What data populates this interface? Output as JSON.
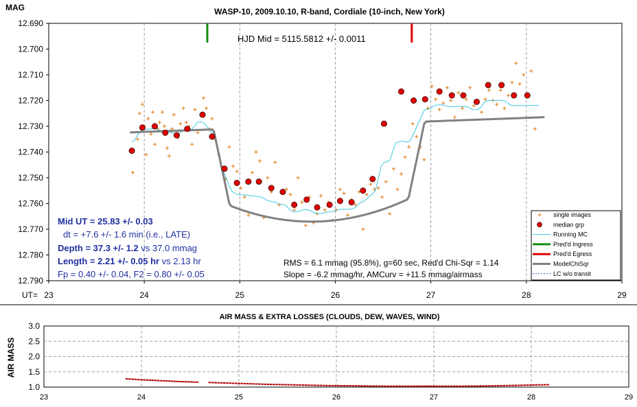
{
  "colors": {
    "single": "#e07a10",
    "median_fill": "#e00000",
    "running": "#3cc8e0",
    "model": "#808080",
    "ingress": "#148a14",
    "egress": "#e00000",
    "airmass": "#b00000",
    "stats_text": "#1f2fa0",
    "hjd_text": "#1f2fa0"
  },
  "chart_data": [
    {
      "type": "scatter",
      "title": "WASP-10, 2009.10.10, R-band, Cordiale (10-inch, New York)",
      "ylabel": "MAG",
      "xlabel": "UT=",
      "xlim": [
        23,
        29
      ],
      "ylim": [
        12.69,
        12.79
      ],
      "y_inverted": true,
      "x_ticks": [
        23,
        24,
        25,
        26,
        27,
        28,
        29
      ],
      "y_ticks": [
        "12.690",
        "12.700",
        "12.710",
        "12.720",
        "12.730",
        "12.740",
        "12.750",
        "12.760",
        "12.770",
        "12.780",
        "12.790"
      ],
      "grid": "vertical",
      "hjd_label": "HJD Mid = 5115.5812 +/- 0.0011",
      "ingress_ut": 24.66,
      "egress_ut": 26.8,
      "stats": {
        "mid_ut_bold": "Mid UT = 25.83 +/- 0.03",
        "dt": "dt = +7.6 +/- 1.6 min (i.e., LATE)",
        "depth_bold": "Depth = 37.3 +/- 1.2",
        "depth_rest": " vs 37.0 mmag",
        "length_bold": "Length = 2.21 +/- 0.05 hr",
        "length_rest": " vs 2.13 hr",
        "fp": "Fp = 0.40 +/- 0.04,  F2 = 0.80 +/- 0.05",
        "rms": "RMS = 6.1 mmag (95.8%), g=60 sec, Red'd Chi-Sqr = 1.14",
        "slope": "Slope = -6.2 mmag/hr, AMCurv = +11.5 mmag/airmass"
      },
      "legend": [
        {
          "label": "single images",
          "kind": "single"
        },
        {
          "label": "median grp",
          "kind": "median"
        },
        {
          "label": "Running MC",
          "kind": "running"
        },
        {
          "label": "Pred'd Ingress",
          "kind": "ingress"
        },
        {
          "label": "Pred'd Egress",
          "kind": "egress"
        },
        {
          "label": "ModelChiSqr",
          "kind": "model"
        },
        {
          "label": "LC w/o transit",
          "kind": "lcwo"
        }
      ],
      "legend_position": "bottom-right",
      "series": [
        {
          "name": "median grp",
          "x": [
            23.87,
            23.98,
            24.11,
            24.22,
            24.34,
            24.45,
            24.61,
            24.71,
            24.84,
            24.97,
            25.09,
            25.2,
            25.33,
            25.45,
            25.57,
            25.7,
            25.81,
            25.94,
            26.05,
            26.17,
            26.29,
            26.39,
            26.51,
            26.69,
            26.82,
            26.94,
            27.09,
            27.22,
            27.34,
            27.48,
            27.6,
            27.74,
            27.87,
            28.01
          ],
          "y": [
            12.7395,
            12.7305,
            12.73,
            12.7325,
            12.7335,
            12.731,
            12.7255,
            12.734,
            12.7465,
            12.752,
            12.7515,
            12.7515,
            12.754,
            12.7555,
            12.7605,
            12.7585,
            12.7615,
            12.7605,
            12.759,
            12.7595,
            12.755,
            12.7505,
            12.729,
            12.7165,
            12.72,
            12.7195,
            12.7165,
            12.718,
            12.718,
            12.7205,
            12.714,
            12.714,
            12.718,
            12.718
          ]
        },
        {
          "name": "single images",
          "x": [
            23.88,
            23.93,
            23.95,
            23.98,
            24.0,
            24.02,
            24.04,
            24.07,
            24.09,
            24.11,
            24.14,
            24.16,
            24.19,
            24.21,
            24.24,
            24.26,
            24.29,
            24.31,
            24.35,
            24.38,
            24.41,
            24.44,
            24.47,
            24.5,
            24.53,
            24.56,
            24.6,
            24.62,
            24.65,
            24.68,
            24.71,
            24.74,
            24.78,
            24.81,
            24.85,
            24.89,
            24.93,
            24.97,
            25.01,
            25.05,
            25.09,
            25.13,
            25.17,
            25.21,
            25.25,
            25.29,
            25.33,
            25.37,
            25.41,
            25.45,
            25.49,
            25.53,
            25.57,
            25.61,
            25.65,
            25.69,
            25.73,
            25.77,
            25.81,
            25.85,
            25.89,
            25.93,
            25.97,
            26.01,
            26.05,
            26.09,
            26.13,
            26.17,
            26.21,
            26.25,
            26.29,
            26.33,
            26.37,
            26.41,
            26.45,
            26.49,
            26.53,
            26.57,
            26.61,
            26.65,
            26.69,
            26.73,
            26.77,
            26.81,
            26.85,
            26.89,
            26.93,
            26.97,
            27.01,
            27.05,
            27.09,
            27.13,
            27.17,
            27.21,
            27.25,
            27.29,
            27.33,
            27.37,
            27.41,
            27.45,
            27.49,
            27.53,
            27.57,
            27.61,
            27.65,
            27.69,
            27.73,
            27.77,
            27.81,
            27.85,
            27.89,
            27.93,
            27.97,
            28.01,
            28.05,
            28.09
          ],
          "y": [
            12.748,
            12.735,
            12.725,
            12.7215,
            12.73,
            12.741,
            12.727,
            12.733,
            12.7245,
            12.737,
            12.731,
            12.7285,
            12.7245,
            12.73,
            12.7385,
            12.7415,
            12.731,
            12.7255,
            12.7345,
            12.729,
            12.723,
            12.7285,
            12.73,
            12.737,
            12.7235,
            12.7325,
            12.7255,
            12.719,
            12.723,
            12.731,
            12.727,
            12.735,
            12.741,
            12.7455,
            12.7505,
            12.738,
            12.7455,
            12.7475,
            12.754,
            12.7575,
            12.7645,
            12.748,
            12.74,
            12.7435,
            12.7655,
            12.75,
            12.7555,
            12.744,
            12.7605,
            12.756,
            12.7545,
            12.7565,
            12.7625,
            12.75,
            12.7595,
            12.7685,
            12.7575,
            12.7675,
            12.764,
            12.757,
            12.7625,
            12.7595,
            12.7665,
            12.7625,
            12.7545,
            12.756,
            12.7645,
            12.7585,
            12.7605,
            12.7555,
            12.77,
            12.7565,
            12.7525,
            12.7545,
            12.754,
            12.7575,
            12.7515,
            12.764,
            12.7465,
            12.7545,
            12.7485,
            12.742,
            12.738,
            12.729,
            12.734,
            12.738,
            12.743,
            12.723,
            12.7145,
            12.7195,
            12.7235,
            12.721,
            12.715,
            12.72,
            12.7265,
            12.717,
            12.723,
            12.7195,
            12.715,
            12.722,
            12.72,
            12.7245,
            12.7195,
            12.716,
            12.72,
            12.7215,
            12.716,
            12.723,
            12.718,
            12.713,
            12.7055,
            12.7135,
            12.71,
            12.7185,
            12.7085,
            12.731
          ]
        }
      ]
    },
    {
      "type": "scatter",
      "title": "AIR MASS & EXTRA LOSSES (CLOUDS, DEW, WAVES, WIND)",
      "ylabel": "AIR MASS",
      "xlim": [
        23,
        29
      ],
      "ylim": [
        1.0,
        3.0
      ],
      "x_ticks": [
        23,
        24,
        25,
        26,
        27,
        28,
        29
      ],
      "y_ticks": [
        "1.0",
        "1.5",
        "2.0",
        "2.5",
        "3.0"
      ],
      "grid": "both",
      "series": [
        {
          "name": "air mass",
          "x": [
            23.85,
            24.0,
            24.2,
            24.4,
            24.6,
            24.7,
            25.0,
            25.3,
            25.6,
            25.9,
            26.2,
            26.5,
            26.8,
            27.0,
            27.3,
            27.6,
            27.9,
            28.2
          ],
          "y": [
            1.27,
            1.24,
            1.21,
            1.18,
            1.16,
            1.15,
            1.12,
            1.09,
            1.07,
            1.05,
            1.04,
            1.03,
            1.03,
            1.03,
            1.03,
            1.04,
            1.06,
            1.08
          ]
        }
      ]
    }
  ]
}
